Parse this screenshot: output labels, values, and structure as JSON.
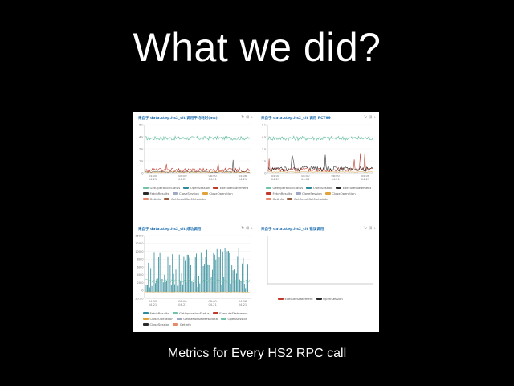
{
  "slide": {
    "title": "What we did?",
    "caption": "Metrics for Every HS2 RPC call"
  },
  "toolbar": {
    "refresh_glyph": "↻",
    "zoom_glyph": "⊞",
    "download_glyph": "↓"
  },
  "colors": {
    "teal": "#6fc3a8",
    "darkteal": "#2e8a98",
    "red": "#c0392b",
    "black": "#2b2b2b",
    "orange": "#e0a33a",
    "salmon": "#e88a6b",
    "grey": "#a3a8c4",
    "brown": "#9b5b3c"
  },
  "chart_data": [
    {
      "type": "line",
      "title": "来自于 data.step.hs2_clt 调用平均耗时(ms)",
      "y_ticks": [
        "6 k",
        "4 k",
        "2 k",
        "1 k",
        "0"
      ],
      "x_ticks": [
        "04:00\n04-21",
        "08:00\n04-21",
        "08:00\n04-21",
        "04:06\n04-21"
      ],
      "legend": [
        {
          "name": "GetOperationStatus",
          "color": "teal"
        },
        {
          "name": "OpenSession",
          "color": "darkteal"
        },
        {
          "name": "ExecuteStatement",
          "color": "red"
        },
        {
          "name": "FetchResults",
          "color": "black"
        },
        {
          "name": "CloseSession",
          "color": "grey"
        },
        {
          "name": "CloseOperation",
          "color": "orange"
        },
        {
          "name": "GetInfo",
          "color": "salmon"
        },
        {
          "name": "GetResultSetMetadata",
          "color": "brown"
        }
      ]
    },
    {
      "type": "line",
      "title": "来自于 data.step.hs2_clt 调用 PCT99",
      "y_ticks": [
        "6 k",
        "4 k",
        "2 k",
        "1 k",
        "0"
      ],
      "x_ticks": [
        "04:00\n04-21",
        "08:00\n04-21",
        "08:00\n04-21",
        "04:06\n04-21"
      ],
      "legend": [
        {
          "name": "GetOperationStatus",
          "color": "teal"
        },
        {
          "name": "OpenSession",
          "color": "darkteal"
        },
        {
          "name": "ExecuteStatement",
          "color": "black"
        },
        {
          "name": "FetchResults",
          "color": "red"
        },
        {
          "name": "CloseSession",
          "color": "grey"
        },
        {
          "name": "CloseOperation",
          "color": "orange"
        },
        {
          "name": "GetInfo",
          "color": "salmon"
        },
        {
          "name": "GetResultSetMetadata",
          "color": "brown"
        }
      ]
    },
    {
      "type": "line",
      "title": "来自于 data.step.hs2_clt 成功调用",
      "y_ticks": [
        "150.0",
        "120.0",
        "100.0",
        "80.0",
        "60.0",
        "40.0",
        "20.0",
        "0",
        "-20.00"
      ],
      "x_ticks": [
        "04:00\n04-21",
        "08:00\n04-21",
        "08:00\n04-21",
        "04:06\n04-21"
      ],
      "legend": [
        {
          "name": "FetchResults",
          "color": "darkteal"
        },
        {
          "name": "GetOperationStatus",
          "color": "teal"
        },
        {
          "name": "ExecuteStatement",
          "color": "red"
        },
        {
          "name": "CloseOperation",
          "color": "orange"
        },
        {
          "name": "GetResultSetMetadata",
          "color": "grey"
        },
        {
          "name": "OpenSession",
          "color": "teal"
        },
        {
          "name": "CloseSession",
          "color": "black"
        },
        {
          "name": "GetInfo",
          "color": "salmon"
        }
      ]
    },
    {
      "type": "line",
      "title": "来自于 data.step.hs2_clt 错误调用",
      "y_ticks": [],
      "x_ticks": [],
      "legend": [
        {
          "name": "ExecuteStatement",
          "color": "red"
        },
        {
          "name": "OpenSession",
          "color": "black"
        }
      ]
    }
  ]
}
